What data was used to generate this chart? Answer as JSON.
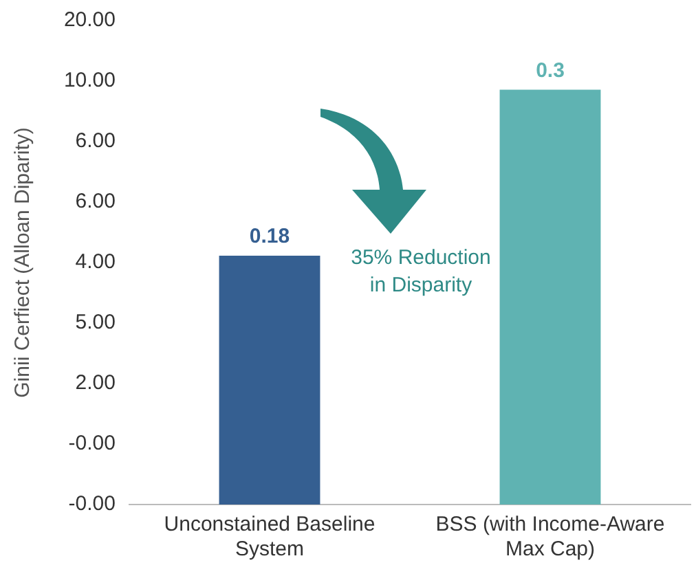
{
  "chart_data": {
    "type": "bar",
    "ylabel": "Ginii Cerfiect (Alloan Diparity)",
    "categories": [
      "Unconstained Baseline System",
      "BSS (with Income-Aware Max Cap)"
    ],
    "values": [
      0.18,
      0.3
    ],
    "data_labels": true,
    "colors": [
      "#355f91",
      "#5fb3b2"
    ],
    "tick_labels": "x",
    "annotations": [
      "35% Reduction in Disparity",
      "20.00",
      "10.00",
      "6.00",
      "6.00",
      "4.00",
      "5.00",
      "2.00",
      "-0.00",
      "-0.00"
    ],
    "grid": false,
    "legend": false
  }
}
